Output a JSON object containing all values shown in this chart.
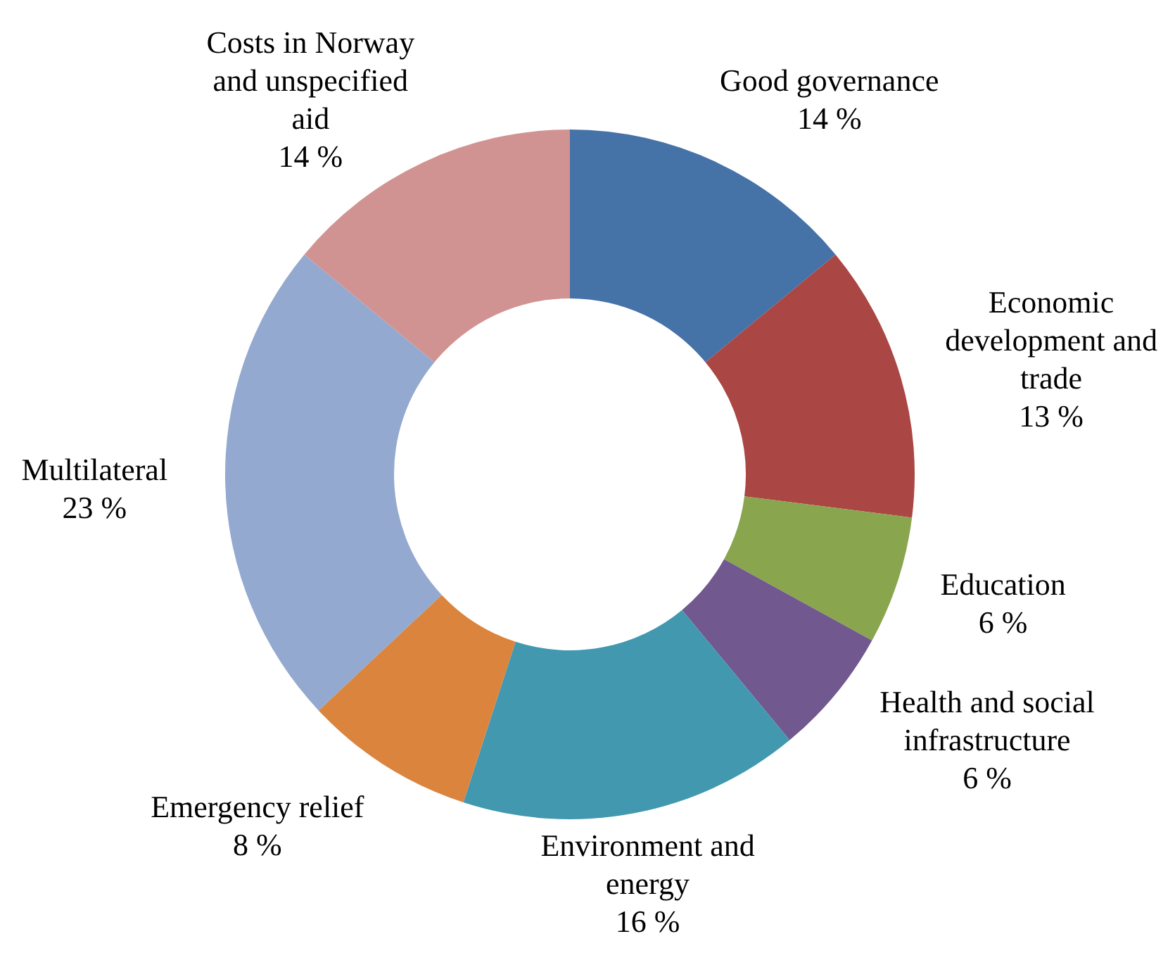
{
  "chart_data": {
    "type": "donut",
    "categories": [
      "Good governance",
      "Economic development and trade",
      "Education",
      "Health and social infrastructure",
      "Environment and energy",
      "Emergency relief",
      "Multilateral",
      "Costs in Norway and unspecified aid"
    ],
    "values": [
      14,
      13,
      6,
      6,
      16,
      8,
      23,
      14
    ],
    "value_labels": [
      "14 %",
      "13 %",
      "6 %",
      "6 %",
      "16 %",
      "8 %",
      "23 %",
      "14 %"
    ],
    "colors": [
      "#4572a7",
      "#aa4643",
      "#89a54e",
      "#71588f",
      "#4198af",
      "#db843d",
      "#93a9cf",
      "#d19392"
    ],
    "legend": false
  }
}
